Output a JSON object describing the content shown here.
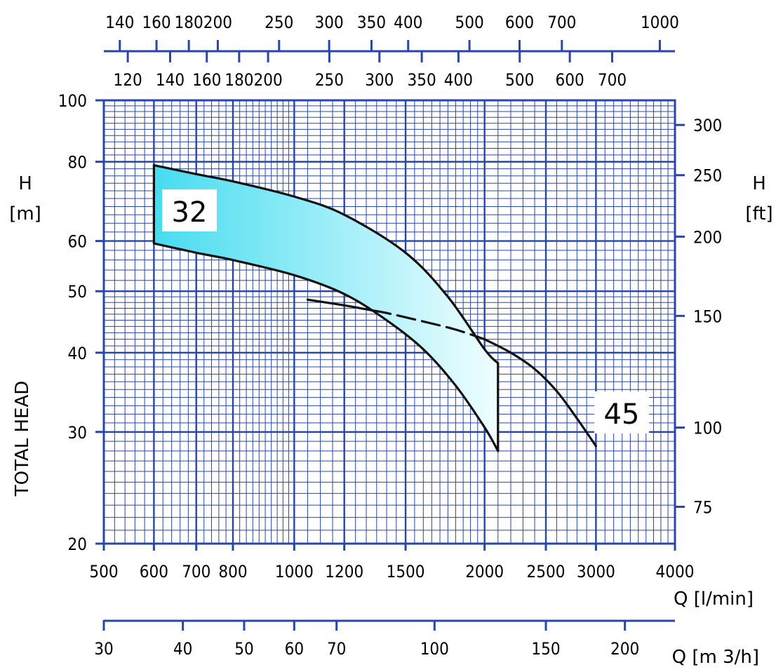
{
  "chart_data": {
    "type": "line",
    "x_scale": "log",
    "y_scale": "log",
    "grid": true,
    "xlim": [
      500,
      4000
    ],
    "ylim": [
      20,
      100
    ],
    "axes": {
      "x_bottom": {
        "label": "Q [l/min]",
        "ticks": [
          "500",
          "600",
          "700",
          "800",
          "1000",
          "1200",
          "1500",
          "2000",
          "2500",
          "3000",
          "4000"
        ]
      },
      "y_left": {
        "label_symbol": "H",
        "label_unit": "[m]",
        "side_label": "TOTAL HEAD",
        "ticks": [
          "20",
          "30",
          "40",
          "50",
          "60",
          "80",
          "100"
        ]
      },
      "y_right": {
        "label_symbol": "H",
        "label_unit": "[ft]",
        "ticks": [
          "75",
          "100",
          "150",
          "200",
          "250",
          "300"
        ]
      },
      "top_1": {
        "ticks": [
          "140",
          "160",
          "180",
          "200",
          "250",
          "300",
          "350",
          "400",
          "500",
          "600",
          "700",
          "1000"
        ]
      },
      "top_2": {
        "ticks": [
          "120",
          "140",
          "160",
          "180",
          "200",
          "250",
          "300",
          "350",
          "400",
          "500",
          "600",
          "700"
        ]
      },
      "bottom_m3h": {
        "label": "Q [m 3/h]",
        "ticks": [
          "30",
          "40",
          "50",
          "60",
          "70",
          "100",
          "150",
          "200"
        ]
      }
    },
    "series": [
      {
        "name": "32",
        "role": "band-upper",
        "x": [
          600,
          700,
          800,
          1000,
          1200,
          1500,
          1750,
          2000,
          2100
        ],
        "y": [
          79,
          76.5,
          74.5,
          70.5,
          66,
          57.5,
          49,
          40.5,
          38.5
        ]
      },
      {
        "name": "32",
        "role": "band-lower",
        "x": [
          600,
          700,
          800,
          1000,
          1200,
          1400,
          1600,
          1800,
          2000,
          2100
        ],
        "y": [
          59.5,
          57.5,
          56,
          53,
          49.5,
          45,
          40.5,
          35.5,
          30.5,
          28
        ]
      },
      {
        "name": "45",
        "x": [
          1050,
          1200,
          1400,
          1600,
          1800,
          2000,
          2200,
          2400,
          2600,
          2800,
          3000
        ],
        "y": [
          48.5,
          47.5,
          46.2,
          44.8,
          43.5,
          42,
          40,
          37.7,
          34.8,
          31.5,
          28.5
        ],
        "dashed_range": [
          1330,
          2000
        ]
      }
    ]
  },
  "labels": {
    "curve_32": "32",
    "curve_45": "45"
  },
  "colors": {
    "grid": "#2845a8",
    "curve": "#111111",
    "fill_start": "#46dcf0",
    "fill_end": "#f0feff"
  }
}
